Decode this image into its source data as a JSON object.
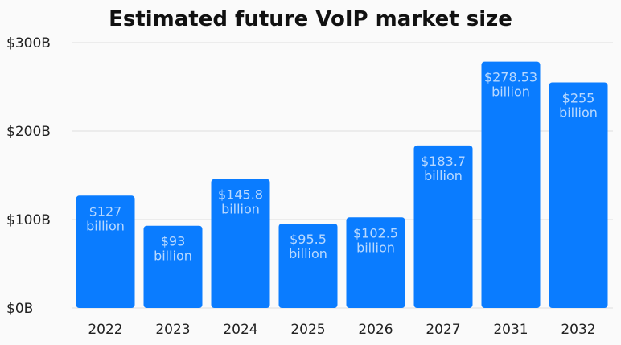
{
  "chart_data": {
    "type": "bar",
    "title": "Estimated future VoIP market size",
    "xlabel": "",
    "ylabel": "",
    "categories": [
      "2022",
      "2023",
      "2024",
      "2025",
      "2026",
      "2027",
      "2031",
      "2032"
    ],
    "values": [
      127,
      93,
      145.8,
      95.5,
      102.5,
      183.7,
      278.53,
      255
    ],
    "data_labels": [
      [
        "$127",
        "billion"
      ],
      [
        "$93",
        "billion"
      ],
      [
        "$145.8",
        "billion"
      ],
      [
        "$95.5",
        "billion"
      ],
      [
        "$102.5",
        "billion"
      ],
      [
        "$183.7",
        "billion"
      ],
      [
        "$278.53",
        "billion"
      ],
      [
        "$255",
        "billion"
      ]
    ],
    "ylim": [
      0,
      300
    ],
    "yticks": [
      0,
      100,
      200,
      300
    ],
    "ytick_labels": [
      "$0B",
      "$100B",
      "$200B",
      "$300B"
    ],
    "grid": true,
    "colors": {
      "bar": "#0a7cff",
      "label": "#b9d9ff",
      "grid": "#dddddd"
    }
  }
}
